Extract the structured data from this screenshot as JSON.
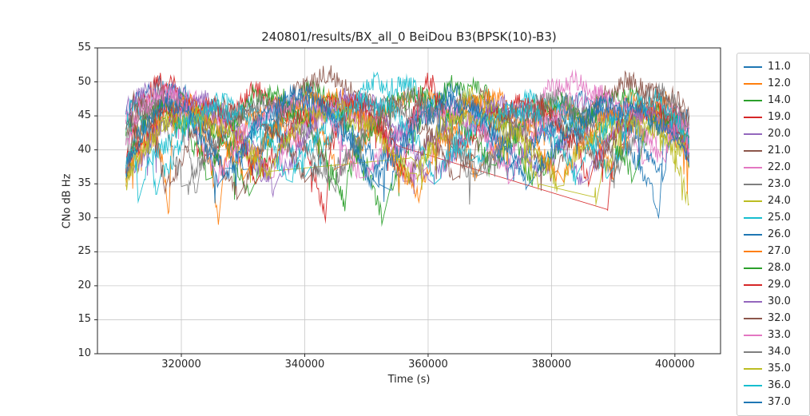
{
  "chart_data": {
    "type": "line",
    "title": "240801/results/BX_all_0 BeiDou B3(BPSK(10)-B3)",
    "xlabel": "Time (s)",
    "ylabel": "CNo dB Hz",
    "xlim": [
      306400,
      407400
    ],
    "ylim": [
      10,
      55
    ],
    "xticks": [
      320000,
      340000,
      360000,
      380000,
      400000
    ],
    "xtick_labels": [
      "320000",
      "340000",
      "360000",
      "380000",
      "400000"
    ],
    "yticks": [
      10,
      15,
      20,
      25,
      30,
      35,
      40,
      45,
      50,
      55
    ],
    "ytick_labels": [
      "10",
      "15",
      "20",
      "25",
      "30",
      "35",
      "40",
      "45",
      "50",
      "55"
    ],
    "grid": true,
    "legend_position": "right-outside",
    "series": [
      {
        "name": "11.0",
        "color": "#1f77b4",
        "noise": 1.5,
        "arcs": [
          [
            311000,
            330000,
            45,
            48,
            37
          ],
          [
            331000,
            352000,
            36,
            47,
            36
          ],
          [
            354000,
            374000,
            35,
            49,
            36
          ],
          [
            375000,
            397500,
            36,
            47,
            30
          ],
          [
            398000,
            402300,
            40,
            45,
            43
          ]
        ]
      },
      {
        "name": "12.0",
        "color": "#ff7f0e",
        "noise": 1.4,
        "arcs": [
          [
            311000,
            318000,
            35,
            44,
            31
          ],
          [
            318500,
            326000,
            42,
            45,
            30
          ],
          [
            327000,
            345000,
            38,
            47,
            38
          ],
          [
            347000,
            368000,
            37,
            48,
            36
          ],
          [
            370000,
            390000,
            38,
            46,
            37
          ],
          [
            391000,
            402300,
            39,
            47,
            41
          ]
        ]
      },
      {
        "name": "14.0",
        "color": "#2ca02c",
        "noise": 1.5,
        "arcs": [
          [
            311000,
            331000,
            43,
            46,
            35
          ],
          [
            332000,
            352500,
            36,
            48,
            31
          ],
          [
            354000,
            377000,
            35,
            49,
            36
          ],
          [
            378000,
            402300,
            37,
            47,
            42
          ]
        ]
      },
      {
        "name": "19.0",
        "color": "#d62728",
        "noise": 1.5,
        "arcs": [
          [
            311000,
            324000,
            38,
            50,
            37
          ],
          [
            325000,
            343500,
            38,
            48,
            29.5
          ],
          [
            344000,
            355000,
            40,
            47,
            40
          ],
          [
            389000,
            389200,
            32,
            32,
            32
          ],
          [
            389500,
            402300,
            36,
            46,
            40
          ]
        ]
      },
      {
        "name": "20.0",
        "color": "#9467bd",
        "noise": 1.4,
        "arcs": [
          [
            311000,
            333000,
            46,
            48,
            36
          ],
          [
            334000,
            356000,
            36,
            47,
            35
          ],
          [
            357000,
            378000,
            36,
            46,
            36
          ],
          [
            379000,
            402300,
            37,
            46,
            39
          ]
        ]
      },
      {
        "name": "21.0",
        "color": "#8c564b",
        "noise": 1.5,
        "arcs": [
          [
            311000,
            329000,
            44,
            46,
            34
          ],
          [
            330000,
            356000,
            35,
            50,
            37
          ],
          [
            357000,
            380000,
            37,
            47,
            36
          ],
          [
            381000,
            402300,
            38,
            49,
            44
          ]
        ]
      },
      {
        "name": "22.0",
        "color": "#e377c2",
        "noise": 1.4,
        "arcs": [
          [
            311000,
            334000,
            45,
            47,
            36
          ],
          [
            335000,
            358000,
            36,
            46,
            35
          ],
          [
            360000,
            372000,
            37,
            45,
            38
          ],
          [
            373000,
            395000,
            38,
            50,
            38
          ],
          [
            396000,
            402300,
            40,
            46,
            42
          ]
        ]
      },
      {
        "name": "23.0",
        "color": "#7f7f7f",
        "noise": 1.5,
        "arcs": [
          [
            311000,
            322500,
            40,
            48,
            34
          ],
          [
            323000,
            344000,
            36,
            47,
            36
          ],
          [
            345000,
            367000,
            36,
            46,
            36
          ],
          [
            368000,
            390000,
            36,
            45,
            36
          ],
          [
            391000,
            402300,
            38,
            44,
            40
          ]
        ]
      },
      {
        "name": "24.0",
        "color": "#bcbd22",
        "noise": 1.4,
        "arcs": [
          [
            311000,
            334000,
            36,
            46,
            37
          ],
          [
            357000,
            357200,
            38.5,
            38.5,
            38.5
          ],
          [
            358000,
            378000,
            37,
            47,
            36
          ],
          [
            387000,
            387200,
            34,
            34,
            34
          ],
          [
            388000,
            402300,
            36,
            45,
            33
          ]
        ]
      },
      {
        "name": "25.0",
        "color": "#17becf",
        "noise": 1.5,
        "arcs": [
          [
            311000,
            316000,
            44,
            45,
            33.5
          ],
          [
            317000,
            340000,
            36,
            47,
            36
          ],
          [
            341000,
            367000,
            36,
            50,
            38
          ],
          [
            368000,
            389000,
            38,
            47,
            36
          ],
          [
            390000,
            402300,
            38,
            46,
            40
          ]
        ]
      },
      {
        "name": "26.0",
        "color": "#1f77b4",
        "noise": 1.4,
        "arcs": [
          [
            311000,
            327000,
            38,
            47,
            36
          ],
          [
            328000,
            350000,
            36,
            48,
            36
          ],
          [
            351000,
            373000,
            36,
            47,
            36
          ],
          [
            374000,
            398000,
            37,
            46,
            36
          ],
          [
            398500,
            402300,
            38,
            44,
            41
          ]
        ]
      },
      {
        "name": "27.0",
        "color": "#ff7f0e",
        "noise": 1.4,
        "arcs": [
          [
            311000,
            330000,
            37,
            46,
            37
          ],
          [
            331000,
            358500,
            38,
            47,
            33
          ],
          [
            359000,
            381000,
            36,
            47,
            36
          ],
          [
            382000,
            402300,
            37,
            46,
            40
          ]
        ]
      },
      {
        "name": "28.0",
        "color": "#2ca02c",
        "noise": 1.5,
        "arcs": [
          [
            311000,
            324000,
            36,
            46,
            36
          ],
          [
            325000,
            346500,
            37,
            48,
            31
          ],
          [
            347000,
            370000,
            36,
            48,
            37
          ],
          [
            371000,
            393000,
            37,
            47,
            36
          ],
          [
            394000,
            402300,
            38,
            45,
            40
          ]
        ]
      },
      {
        "name": "29.0",
        "color": "#d62728",
        "noise": 1.5,
        "arcs": [
          [
            311000,
            332000,
            37,
            47,
            36
          ],
          [
            333000,
            356000,
            36,
            47,
            37
          ],
          [
            356500,
            363000,
            40,
            50,
            42
          ],
          [
            364000,
            386000,
            38,
            47,
            36
          ],
          [
            387000,
            402300,
            37,
            46,
            39
          ]
        ]
      },
      {
        "name": "30.0",
        "color": "#9467bd",
        "noise": 1.4,
        "arcs": [
          [
            311000,
            335000,
            36,
            46,
            35
          ],
          [
            336000,
            360000,
            36,
            47,
            36
          ],
          [
            361000,
            385000,
            36,
            46,
            36
          ],
          [
            386000,
            402300,
            37,
            45,
            40
          ]
        ]
      },
      {
        "name": "32.0",
        "color": "#8c564b",
        "noise": 1.4,
        "arcs": [
          [
            311000,
            317500,
            43,
            46,
            33
          ],
          [
            318000,
            340000,
            35,
            46,
            36
          ],
          [
            341000,
            364000,
            36,
            47,
            36
          ],
          [
            365000,
            388000,
            36,
            46,
            37
          ],
          [
            389000,
            402300,
            39,
            48,
            45
          ]
        ]
      },
      {
        "name": "33.0",
        "color": "#e377c2",
        "noise": 1.4,
        "arcs": [
          [
            311000,
            325000,
            41,
            48,
            37
          ],
          [
            326000,
            349000,
            36,
            47,
            36
          ],
          [
            350000,
            373000,
            36,
            46,
            36
          ],
          [
            374000,
            398000,
            37,
            48,
            38
          ],
          [
            398500,
            402300,
            39,
            44,
            40
          ]
        ]
      },
      {
        "name": "34.0",
        "color": "#7f7f7f",
        "noise": 1.4,
        "arcs": [
          [
            311000,
            320000,
            37,
            45,
            36
          ],
          [
            321000,
            344000,
            35,
            46,
            35
          ],
          [
            345000,
            368000,
            36,
            47,
            36
          ],
          [
            369000,
            391000,
            37,
            47,
            38
          ],
          [
            392000,
            402300,
            42,
            48,
            44
          ]
        ]
      },
      {
        "name": "35.0",
        "color": "#bcbd22",
        "noise": 1.4,
        "arcs": [
          [
            311000,
            333000,
            35,
            45,
            36
          ],
          [
            334000,
            357000,
            36,
            46,
            35
          ],
          [
            358000,
            381000,
            36,
            45,
            34
          ],
          [
            382000,
            402300,
            36,
            44,
            38
          ]
        ]
      },
      {
        "name": "36.0",
        "color": "#17becf",
        "noise": 1.4,
        "arcs": [
          [
            311000,
            313000,
            38,
            40,
            34
          ],
          [
            314000,
            337000,
            36,
            46,
            36
          ],
          [
            338000,
            361000,
            36,
            47,
            36
          ],
          [
            362000,
            384000,
            36,
            46,
            36
          ],
          [
            385000,
            402300,
            38,
            47,
            41
          ]
        ]
      },
      {
        "name": "37.0",
        "color": "#1f77b4",
        "noise": 1.4,
        "arcs": [
          [
            311000,
            326000,
            37,
            46,
            36
          ],
          [
            327000,
            351000,
            36,
            47,
            36
          ],
          [
            352000,
            376000,
            36,
            46,
            36
          ],
          [
            377000,
            402300,
            37,
            46,
            40
          ]
        ]
      }
    ]
  }
}
